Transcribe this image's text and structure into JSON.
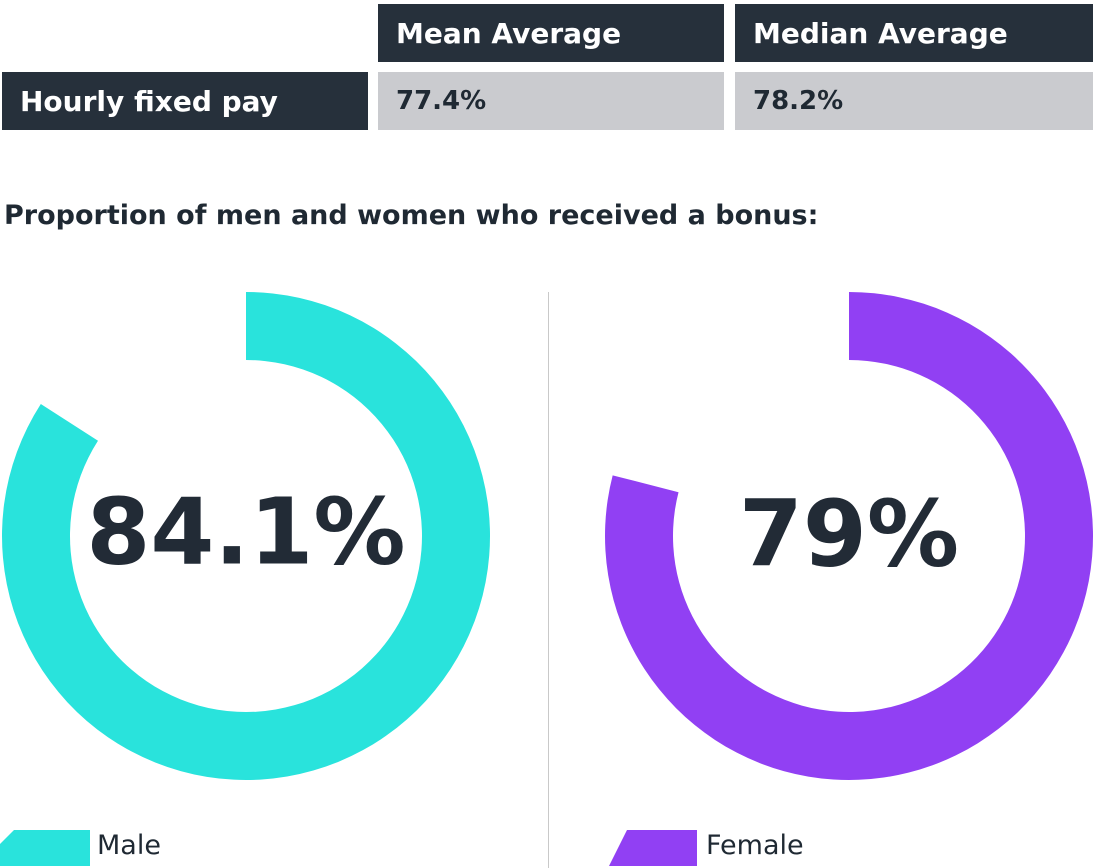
{
  "table": {
    "headers": [
      "Mean Average",
      "Median Average"
    ],
    "row_label": "Hourly fixed pay",
    "values": [
      "77.4%",
      "78.2%"
    ]
  },
  "section_title": "Proportion of men and women who received a bonus:",
  "colors": {
    "dark": "#26303b",
    "light_cell": "#cacbcf",
    "male": "#29e3dc",
    "female": "#9140f3",
    "text": "#222b36"
  },
  "chart_data": [
    {
      "type": "pie",
      "subtype": "donut",
      "series": [
        {
          "name": "Male",
          "values": [
            84.1
          ]
        }
      ],
      "value": 84.1,
      "label": "84.1%",
      "legend": "Male",
      "color": "#29e3dc"
    },
    {
      "type": "pie",
      "subtype": "donut",
      "series": [
        {
          "name": "Female",
          "values": [
            79
          ]
        }
      ],
      "value": 79,
      "label": "79%",
      "legend": "Female",
      "color": "#9140f3"
    }
  ]
}
